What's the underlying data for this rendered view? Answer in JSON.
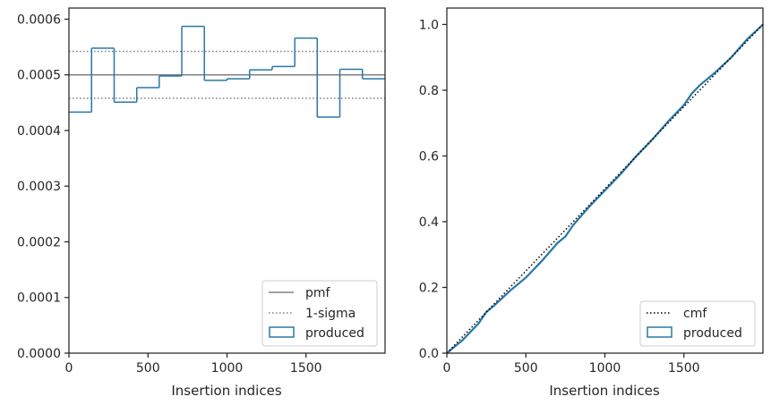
{
  "chart_data": [
    {
      "type": "step-histogram",
      "title": "",
      "xlabel": "Insertion indices",
      "ylabel": "",
      "xlim": [
        0,
        2000
      ],
      "ylim": [
        0,
        0.00062
      ],
      "xticks": [
        0,
        500,
        1000,
        1500
      ],
      "xtick_labels": [
        "0",
        "500",
        "1000",
        "1500"
      ],
      "yticks": [
        0,
        0.0001,
        0.0002,
        0.0003,
        0.0004,
        0.0005,
        0.0006
      ],
      "ytick_labels": [
        "0.0000",
        "0.0001",
        "0.0002",
        "0.0003",
        "0.0004",
        "0.0005",
        "0.0006"
      ],
      "bin_edges": [
        0,
        143,
        286,
        429,
        571,
        714,
        857,
        1000,
        1143,
        1286,
        1429,
        1571,
        1714,
        1857,
        2000
      ],
      "produced": [
        0.000433,
        0.000548,
        0.000451,
        0.000477,
        0.000498,
        0.000587,
        0.00049,
        0.000493,
        0.000509,
        0.000515,
        0.000566,
        0.000424,
        0.00051,
        0.000493
      ],
      "pmf": 0.0005,
      "sigma_band": [
        0.000458,
        0.000542
      ],
      "legend": {
        "position": "lower-right",
        "entries": [
          {
            "label": "pmf",
            "style": "solid-gray"
          },
          {
            "label": "1-sigma",
            "style": "dotted-gray"
          },
          {
            "label": "produced",
            "style": "blue-patch"
          }
        ]
      },
      "colors": {
        "produced": "#2878a8",
        "pmf": "#808080"
      }
    },
    {
      "type": "step-cumulative",
      "title": "",
      "xlabel": "Insertion indices",
      "ylabel": "",
      "xlim": [
        0,
        2000
      ],
      "ylim": [
        0,
        1.05
      ],
      "xticks": [
        0,
        500,
        1000,
        1500
      ],
      "xtick_labels": [
        "0",
        "500",
        "1000",
        "1500"
      ],
      "yticks": [
        0,
        0.2,
        0.4,
        0.6,
        0.8,
        1.0
      ],
      "ytick_labels": [
        "0.0",
        "0.2",
        "0.4",
        "0.6",
        "0.8",
        "1.0"
      ],
      "produced_x": [
        0,
        100,
        200,
        250,
        300,
        400,
        500,
        600,
        700,
        750,
        800,
        900,
        1000,
        1100,
        1200,
        1300,
        1400,
        1500,
        1550,
        1600,
        1700,
        1800,
        1900,
        2000
      ],
      "produced_y": [
        0,
        0.04,
        0.09,
        0.125,
        0.145,
        0.19,
        0.23,
        0.28,
        0.335,
        0.355,
        0.39,
        0.445,
        0.495,
        0.545,
        0.6,
        0.65,
        0.705,
        0.755,
        0.79,
        0.815,
        0.855,
        0.9,
        0.955,
        1.0
      ],
      "cmf_x": [
        0,
        2000
      ],
      "cmf_y": [
        0,
        1.0
      ],
      "legend": {
        "position": "lower-right",
        "entries": [
          {
            "label": "cmf",
            "style": "dotted-black"
          },
          {
            "label": "produced",
            "style": "blue-patch"
          }
        ]
      },
      "colors": {
        "produced": "#2878a8",
        "cmf": "#000000"
      }
    }
  ]
}
